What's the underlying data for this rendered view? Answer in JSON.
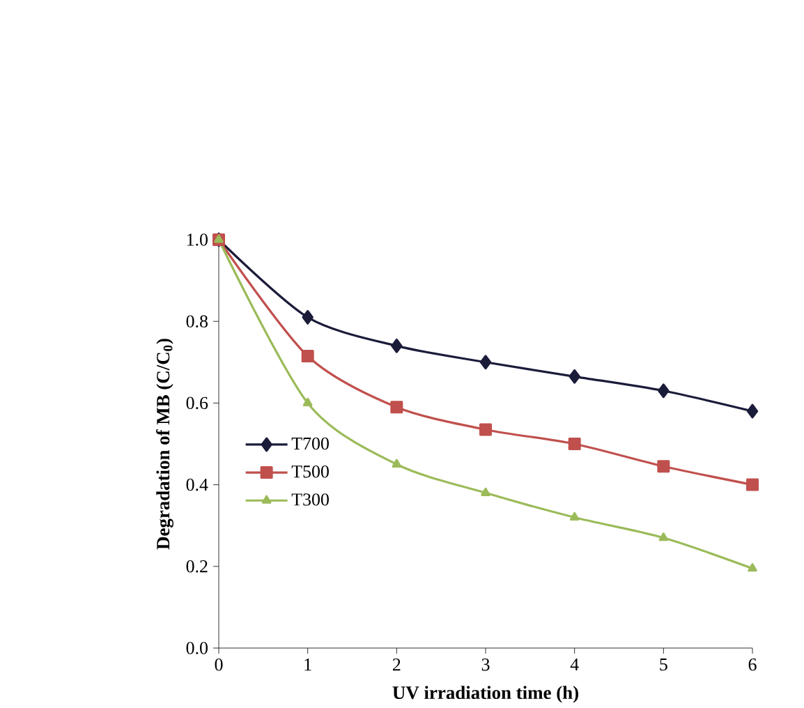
{
  "chart_data": {
    "type": "line",
    "xlabel": "UV irradiation time (h)",
    "ylabel": "Degradation of MB (C/C$_{0}$)",
    "x": [
      0,
      1,
      2,
      3,
      4,
      5,
      6
    ],
    "series": [
      {
        "name": "T700",
        "color": "#1b1b3a",
        "marker": "diamond",
        "values": [
          1.0,
          0.81,
          0.74,
          0.7,
          0.665,
          0.63,
          0.58
        ]
      },
      {
        "name": "T500",
        "color": "#c0504d",
        "marker": "square",
        "values": [
          1.0,
          0.715,
          0.59,
          0.535,
          0.5,
          0.445,
          0.4
        ]
      },
      {
        "name": "T300",
        "color": "#9bbb59",
        "marker": "triangle",
        "values": [
          1.0,
          0.6,
          0.45,
          0.38,
          0.32,
          0.27,
          0.195
        ]
      }
    ],
    "xlim": [
      0,
      6
    ],
    "xticks": [
      0,
      1,
      2,
      3,
      4,
      5,
      6
    ],
    "ylim": [
      0,
      1
    ],
    "yticks": [
      {
        "value": 0,
        "label": "0.0"
      },
      0.2,
      0.4,
      0.6,
      0.8,
      {
        "value": 1,
        "label": "1.0"
      }
    ],
    "grid": false,
    "legend": "left",
    "line_style": "solid"
  }
}
